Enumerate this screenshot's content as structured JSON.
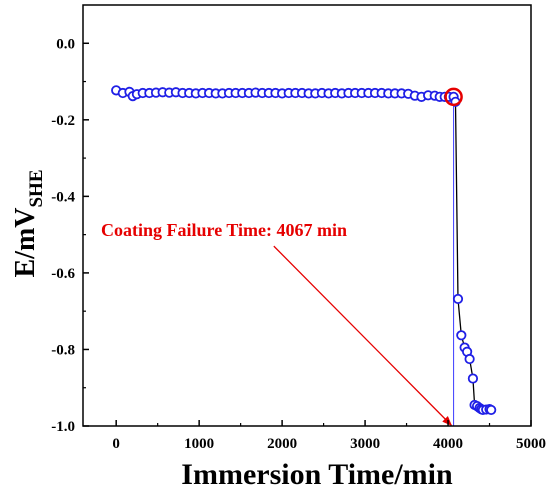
{
  "chart_data": {
    "type": "line",
    "xlabel": "Immersion Time/min",
    "ylabel": {
      "main": "E/mV",
      "subscript": "SHE"
    },
    "xlim": [
      -400,
      5000
    ],
    "ylim": [
      -1.0,
      0.1
    ],
    "xticks": [
      0,
      1000,
      2000,
      3000,
      4000,
      5000
    ],
    "xtick_labels": [
      "0",
      "1000",
      "2000",
      "3000",
      "4000",
      "5000"
    ],
    "yticks": [
      -1.0,
      -0.8,
      -0.6,
      -0.4,
      -0.2,
      0.0
    ],
    "ytick_labels": [
      "-1.0",
      "-0.8",
      "-0.6",
      "-0.4",
      "-0.2",
      "0.0"
    ],
    "grid": false,
    "legend": "none",
    "series": [
      {
        "color": "#1f1fe6",
        "marker": "open-circle",
        "line_color": "#000000",
        "x": [
          0,
          80,
          160,
          200,
          250,
          320,
          400,
          480,
          560,
          640,
          720,
          800,
          880,
          960,
          1040,
          1120,
          1200,
          1280,
          1360,
          1440,
          1520,
          1600,
          1680,
          1760,
          1840,
          1920,
          2000,
          2080,
          2160,
          2240,
          2320,
          2400,
          2480,
          2560,
          2640,
          2720,
          2800,
          2880,
          2960,
          3040,
          3120,
          3200,
          3280,
          3360,
          3440,
          3520,
          3600,
          3680,
          3760,
          3840,
          3900,
          3960,
          4010,
          4067,
          4090,
          4120,
          4160,
          4200,
          4230,
          4260,
          4300,
          4320,
          4350,
          4380,
          4400,
          4420,
          4460,
          4500,
          4520
        ],
        "y": [
          -0.123,
          -0.13,
          -0.127,
          -0.138,
          -0.133,
          -0.13,
          -0.13,
          -0.129,
          -0.128,
          -0.129,
          -0.128,
          -0.13,
          -0.13,
          -0.131,
          -0.13,
          -0.13,
          -0.131,
          -0.131,
          -0.13,
          -0.13,
          -0.13,
          -0.13,
          -0.129,
          -0.13,
          -0.13,
          -0.13,
          -0.131,
          -0.13,
          -0.13,
          -0.13,
          -0.131,
          -0.131,
          -0.13,
          -0.131,
          -0.13,
          -0.131,
          -0.13,
          -0.13,
          -0.13,
          -0.13,
          -0.13,
          -0.13,
          -0.131,
          -0.131,
          -0.131,
          -0.132,
          -0.137,
          -0.14,
          -0.136,
          -0.137,
          -0.14,
          -0.14,
          -0.14,
          -0.14,
          -0.153,
          -0.668,
          -0.763,
          -0.795,
          -0.806,
          -0.825,
          -0.876,
          -0.945,
          -0.948,
          -0.953,
          -0.956,
          -0.958,
          -0.957,
          -0.956,
          -0.958
        ]
      }
    ],
    "annotations": [
      {
        "text": "Coating Failure Time: 4067 min",
        "color": "#e60000",
        "text_at": {
          "x": 1300,
          "y": -0.503
        },
        "arrow_from": {
          "x": 1900,
          "y": -0.53
        },
        "arrow_to": {
          "x": 4040,
          "y": -0.998
        }
      }
    ],
    "failure_marker": {
      "x": 4067,
      "y": -0.14,
      "color": "#e60000"
    },
    "failure_line": {
      "x": 4067,
      "color": "#3b3bff"
    }
  }
}
